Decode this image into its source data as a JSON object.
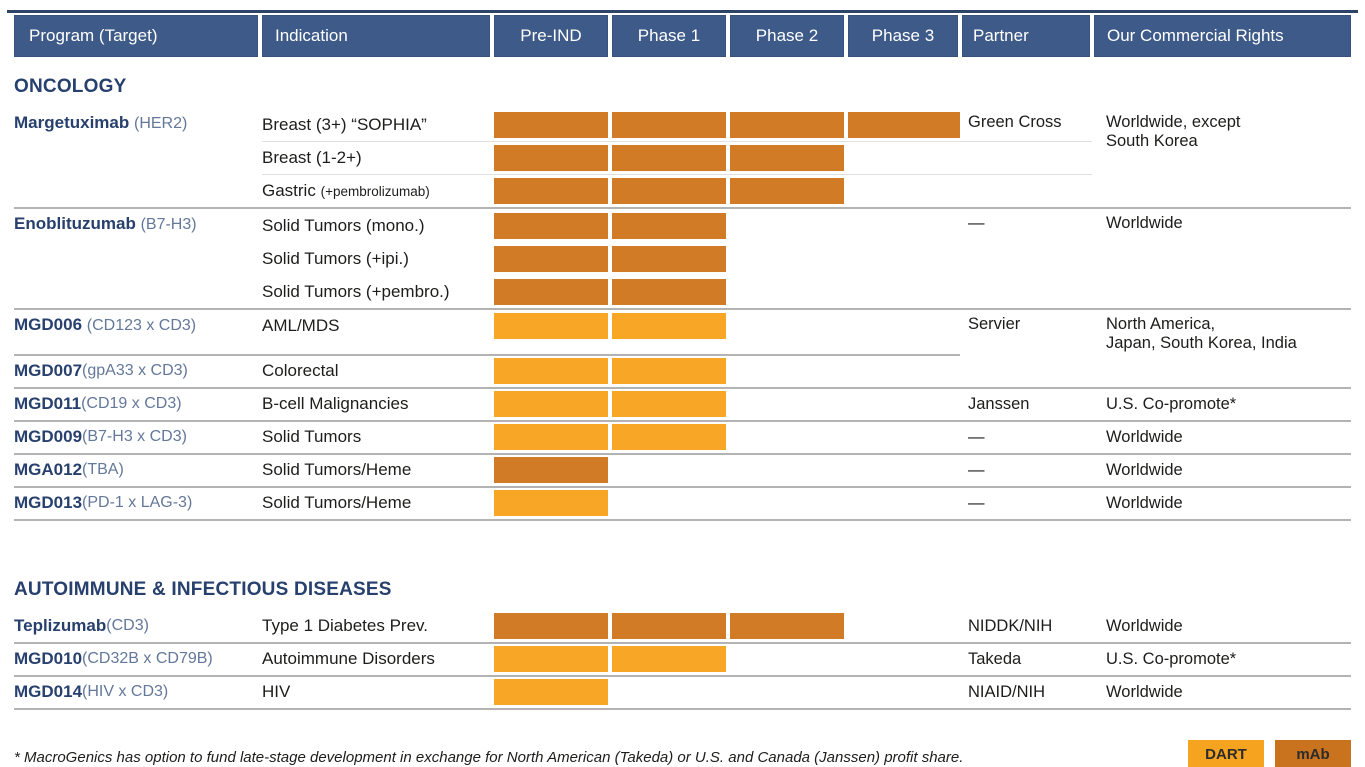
{
  "header": {
    "columns": [
      "Program (Target)",
      "Indication",
      "Pre-IND",
      "Phase 1",
      "Phase 2",
      "Phase 3",
      "Partner",
      "Our Commercial Rights"
    ]
  },
  "colors": {
    "dart": "#F8A625",
    "mab": "#D17B27",
    "header_bg": "#3D5A88",
    "navy": "#27406D",
    "navy_dark": "#2C4468",
    "legend_dart": "#F6A41F",
    "legend_mab": "#C9731E"
  },
  "legend": [
    {
      "label": "DART",
      "swatch": "legend_dart"
    },
    {
      "label": "mAb",
      "swatch": "legend_mab"
    }
  ],
  "footnote": "* MacroGenics has option to fund late-stage development in exchange for North American (Takeda) or U.S. and Canada (Janssen) profit share.",
  "chart_data": {
    "type": "table",
    "title": "Clinical pipeline by development phase",
    "phase_columns": [
      "Pre-IND",
      "Phase 1",
      "Phase 2",
      "Phase 3"
    ],
    "bar_types": {
      "dart": "DART",
      "mab": "mAb"
    }
  },
  "sections": [
    {
      "title": "ONCOLOGY",
      "groups": [
        {
          "program": "Margetuximab",
          "target": "(HER2)",
          "partner": "Green Cross",
          "rights": "Worldwide, except\nSouth Korea",
          "row_dividers": true,
          "rows": [
            {
              "indication": "Breast (3+) “SOPHIA”",
              "phases": 4,
              "type": "mab"
            },
            {
              "indication": "Breast (1-2+)",
              "phases": 3,
              "type": "mab"
            },
            {
              "indication": "Gastric",
              "indication_note": "(+pembrolizumab)",
              "phases": 3,
              "type": "mab"
            }
          ]
        },
        {
          "program": "Enoblituzumab",
          "target": "(B7-H3)",
          "partner": "—",
          "rights": "Worldwide",
          "rows": [
            {
              "indication": "Solid Tumors (mono.)",
              "phases": 2,
              "type": "mab"
            },
            {
              "indication": "Solid Tumors (+ipi.)",
              "phases": 2,
              "type": "mab"
            },
            {
              "indication": "Solid Tumors (+pembro.)",
              "phases": 2,
              "type": "mab"
            }
          ]
        },
        {
          "program": "MGD006",
          "target": "(CD123 x CD3)",
          "partner": "Servier",
          "rights": "North America,\nJapan, South Korea, India",
          "partial_border": true,
          "rows": [
            {
              "indication": "AML/MDS",
              "phases": 2,
              "type": "dart"
            }
          ]
        },
        {
          "program": "MGD007",
          "target": "(gpA33 x CD3)",
          "partner": "",
          "rights": "",
          "rows": [
            {
              "indication": "Colorectal",
              "phases": 2,
              "type": "dart"
            }
          ]
        },
        {
          "program": "MGD011",
          "target": "(CD19 x CD3)",
          "partner": "Janssen",
          "rights": "U.S. Co-promote*",
          "rows": [
            {
              "indication": "B-cell Malignancies",
              "phases": 2,
              "type": "dart"
            }
          ]
        },
        {
          "program": "MGD009",
          "target": "(B7-H3 x CD3)",
          "partner": "—",
          "rights": "Worldwide",
          "rows": [
            {
              "indication": "Solid Tumors",
              "phases": 2,
              "type": "dart"
            }
          ]
        },
        {
          "program": "MGA012",
          "target": "(TBA)",
          "partner": "—",
          "rights": "Worldwide",
          "rows": [
            {
              "indication": "Solid Tumors/Heme",
              "phases": 1,
              "type": "mab"
            }
          ]
        },
        {
          "program": "MGD013",
          "target": "(PD-1 x LAG-3)",
          "partner": "—",
          "rights": "Worldwide",
          "rows": [
            {
              "indication": "Solid Tumors/Heme",
              "phases": 1,
              "type": "dart"
            }
          ]
        }
      ]
    },
    {
      "title": "AUTOIMMUNE & INFECTIOUS DISEASES",
      "groups": [
        {
          "program": "Teplizumab",
          "target": "(CD3)",
          "partner": "NIDDK/NIH",
          "rights": "Worldwide",
          "rows": [
            {
              "indication": "Type 1 Diabetes Prev.",
              "phases": 3,
              "type": "mab"
            }
          ]
        },
        {
          "program": "MGD010",
          "target": "(CD32B x CD79B)",
          "partner": "Takeda",
          "rights": "U.S. Co-promote*",
          "rows": [
            {
              "indication": "Autoimmune Disorders",
              "phases": 2,
              "type": "dart"
            }
          ]
        },
        {
          "program": "MGD014",
          "target": "(HIV x CD3)",
          "partner": "NIAID/NIH",
          "rights": "Worldwide",
          "rows": [
            {
              "indication": "HIV",
              "phases": 1,
              "type": "dart"
            }
          ]
        }
      ]
    }
  ]
}
